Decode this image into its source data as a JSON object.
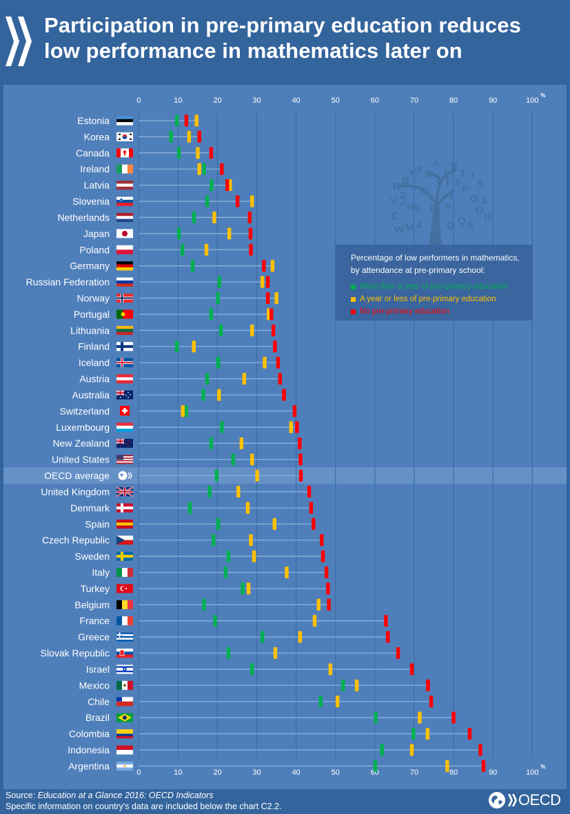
{
  "header": {
    "title_line1": "Participation in pre-primary education reduces",
    "title_line2": "low performance in mathematics later on",
    "logo_icon": "oecd-chevrons-icon"
  },
  "legend": {
    "title_line1": "Percentage of low performers in mathematics,",
    "title_line2": "by attendance at pre-primary school:",
    "items": [
      {
        "label": "More than a year of pre-primary education",
        "color": "#00b050"
      },
      {
        "label": "A year or less of pre-primary education",
        "color": "#ffc000"
      },
      {
        "label": "No pre-primary education",
        "color": "#ff0000"
      }
    ]
  },
  "footer": {
    "source_prefix": "Source: ",
    "source_title": "Education at a Glance 2016: OECD Indicators",
    "note": "Specific information on country's data are included below the chart C2.2.",
    "brand": "OECD"
  },
  "colors": {
    "background": "#34649c",
    "panel": "#4f7fba",
    "highlight": "#6591c7",
    "gridline": "#3c6aa5",
    "rowline": "#8fb0da",
    "green": "#00b050",
    "yellow": "#ffc000",
    "red": "#ff0000"
  },
  "chart_data": {
    "type": "dot-range",
    "title": "Participation in pre-primary education reduces low performance in mathematics later on",
    "xlabel": "",
    "x_unit": "%",
    "xlim": [
      0,
      100
    ],
    "x_ticks": [
      0,
      10,
      20,
      30,
      40,
      50,
      60,
      70,
      80,
      90,
      100
    ],
    "grid": true,
    "legend_position": "top-right",
    "highlight_category": "OECD average",
    "series": [
      {
        "name": "More than a year of pre-primary education",
        "color": "#00b050"
      },
      {
        "name": "A year or less of pre-primary education",
        "color": "#ffc000"
      },
      {
        "name": "No pre-primary education",
        "color": "#ff0000"
      }
    ],
    "rows": [
      {
        "country": "Estonia",
        "flag": "estonia-flag",
        "more": 9.7,
        "less": 14.7,
        "none": 12.1
      },
      {
        "country": "Korea",
        "flag": "korea-flag",
        "more": 8.2,
        "less": 12.8,
        "none": 15.4
      },
      {
        "country": "Canada",
        "flag": "canada-flag",
        "more": 10.2,
        "less": 15.0,
        "none": 18.4
      },
      {
        "country": "Ireland",
        "flag": "ireland-flag",
        "more": 16.6,
        "less": 15.4,
        "none": 21.1
      },
      {
        "country": "Latvia",
        "flag": "latvia-flag",
        "more": 18.5,
        "less": 23.2,
        "none": 22.5
      },
      {
        "country": "Slovenia",
        "flag": "slovenia-flag",
        "more": 17.4,
        "less": 28.8,
        "none": 25.1
      },
      {
        "country": "Netherlands",
        "flag": "netherlands-flag",
        "more": 14.0,
        "less": 19.2,
        "none": 28.2
      },
      {
        "country": "Japan",
        "flag": "japan-flag",
        "more": 10.2,
        "less": 23.0,
        "none": 28.4
      },
      {
        "country": "Poland",
        "flag": "poland-flag",
        "more": 11.1,
        "less": 17.2,
        "none": 28.5
      },
      {
        "country": "Germany",
        "flag": "germany-flag",
        "more": 13.7,
        "less": 34.0,
        "none": 31.8
      },
      {
        "country": "Russian Federation",
        "flag": "russia-flag",
        "more": 20.5,
        "less": 31.4,
        "none": 32.8
      },
      {
        "country": "Norway",
        "flag": "norway-flag",
        "more": 20.1,
        "less": 35.0,
        "none": 32.8
      },
      {
        "country": "Portugal",
        "flag": "portugal-flag",
        "more": 18.4,
        "less": 33.0,
        "none": 33.7
      },
      {
        "country": "Lithuania",
        "flag": "lithuania-flag",
        "more": 20.9,
        "less": 28.8,
        "none": 34.2
      },
      {
        "country": "Finland",
        "flag": "finland-flag",
        "more": 9.7,
        "less": 14.0,
        "none": 34.6
      },
      {
        "country": "Iceland",
        "flag": "iceland-flag",
        "more": 20.2,
        "less": 32.0,
        "none": 35.4
      },
      {
        "country": "Austria",
        "flag": "austria-flag",
        "more": 17.4,
        "less": 26.8,
        "none": 35.9
      },
      {
        "country": "Australia",
        "flag": "australia-flag",
        "more": 16.4,
        "less": 20.4,
        "none": 36.9
      },
      {
        "country": "Switzerland",
        "flag": "switzerland-flag",
        "more": 12.1,
        "less": 11.2,
        "none": 39.6
      },
      {
        "country": "Luxembourg",
        "flag": "luxembourg-flag",
        "more": 21.1,
        "less": 38.7,
        "none": 40.2
      },
      {
        "country": "New Zealand",
        "flag": "new-zealand-flag",
        "more": 18.4,
        "less": 26.1,
        "none": 40.9
      },
      {
        "country": "United States",
        "flag": "united-states-flag",
        "more": 24.0,
        "less": 28.8,
        "none": 41.1
      },
      {
        "country": "OECD average",
        "flag": "oecd-globe-icon",
        "more": 19.8,
        "less": 30.1,
        "none": 41.2
      },
      {
        "country": "United Kingdom",
        "flag": "united-kingdom-flag",
        "more": 18.0,
        "less": 25.3,
        "none": 43.3
      },
      {
        "country": "Denmark",
        "flag": "denmark-flag",
        "more": 13.0,
        "less": 27.7,
        "none": 43.8
      },
      {
        "country": "Spain",
        "flag": "spain-flag",
        "more": 20.2,
        "less": 34.5,
        "none": 44.4
      },
      {
        "country": "Czech Republic",
        "flag": "czech-republic-flag",
        "more": 19.0,
        "less": 28.5,
        "none": 46.5
      },
      {
        "country": "Sweden",
        "flag": "sweden-flag",
        "more": 22.8,
        "less": 29.3,
        "none": 46.8
      },
      {
        "country": "Italy",
        "flag": "italy-flag",
        "more": 22.1,
        "less": 37.6,
        "none": 47.7
      },
      {
        "country": "Turkey",
        "flag": "turkey-flag",
        "more": 26.4,
        "less": 27.9,
        "none": 48.1
      },
      {
        "country": "Belgium",
        "flag": "belgium-flag",
        "more": 16.6,
        "less": 45.7,
        "none": 48.3
      },
      {
        "country": "France",
        "flag": "france-flag",
        "more": 19.4,
        "less": 44.7,
        "none": 62.8
      },
      {
        "country": "Greece",
        "flag": "greece-flag",
        "more": 31.4,
        "less": 41.0,
        "none": 63.3
      },
      {
        "country": "Slovak Republic",
        "flag": "slovak-republic-flag",
        "more": 22.8,
        "less": 34.7,
        "none": 65.9
      },
      {
        "country": "Israel",
        "flag": "israel-flag",
        "more": 28.8,
        "less": 48.7,
        "none": 69.4
      },
      {
        "country": "Mexico",
        "flag": "mexico-flag",
        "more": 51.9,
        "less": 55.4,
        "none": 73.5
      },
      {
        "country": "Chile",
        "flag": "chile-flag",
        "more": 46.2,
        "less": 50.5,
        "none": 74.3
      },
      {
        "country": "Brazil",
        "flag": "brazil-flag",
        "more": 60.2,
        "less": 71.4,
        "none": 80.0
      },
      {
        "country": "Colombia",
        "flag": "colombia-flag",
        "more": 69.8,
        "less": 73.4,
        "none": 84.1
      },
      {
        "country": "Indonesia",
        "flag": "indonesia-flag",
        "more": 61.8,
        "less": 69.4,
        "none": 86.8
      },
      {
        "country": "Argentina",
        "flag": "argentina-flag",
        "more": 60.1,
        "less": 78.4,
        "none": 87.6
      }
    ]
  }
}
